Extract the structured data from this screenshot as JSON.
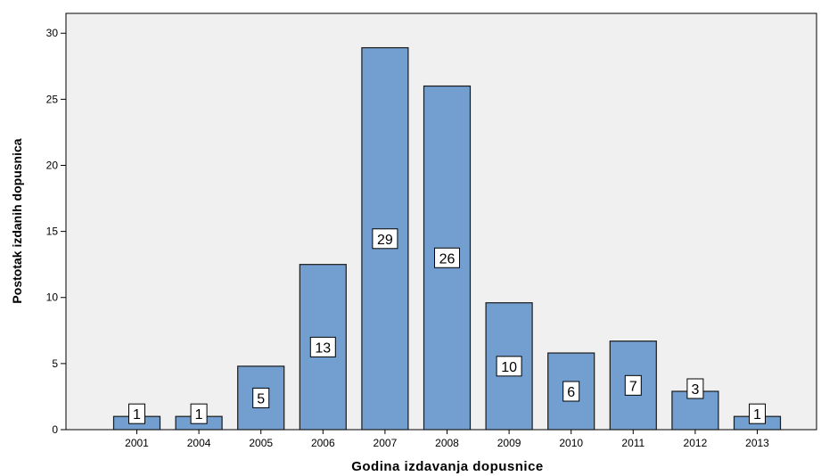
{
  "chart_data": {
    "type": "bar",
    "xlabel": "Godina izdavanja dopusnice",
    "ylabel": "Postotak izdanih dopusnica",
    "ylim": [
      0,
      31.5
    ],
    "yticks": [
      0,
      5,
      10,
      15,
      20,
      25,
      30
    ],
    "categories": [
      "2001",
      "2004",
      "2005",
      "2006",
      "2007",
      "2008",
      "2009",
      "2010",
      "2011",
      "2012",
      "2013"
    ],
    "values": [
      1,
      1,
      4.8,
      12.5,
      28.9,
      26.0,
      9.6,
      5.8,
      6.7,
      2.9,
      1
    ],
    "data_labels": [
      "1",
      "1",
      "5",
      "13",
      "29",
      "26",
      "10",
      "6",
      "7",
      "3",
      "1"
    ],
    "grid": false,
    "colors": {
      "bar_fill": "#729fcf",
      "bar_stroke": "#1a1a1a",
      "plot_background": "#f0f0f0"
    }
  }
}
